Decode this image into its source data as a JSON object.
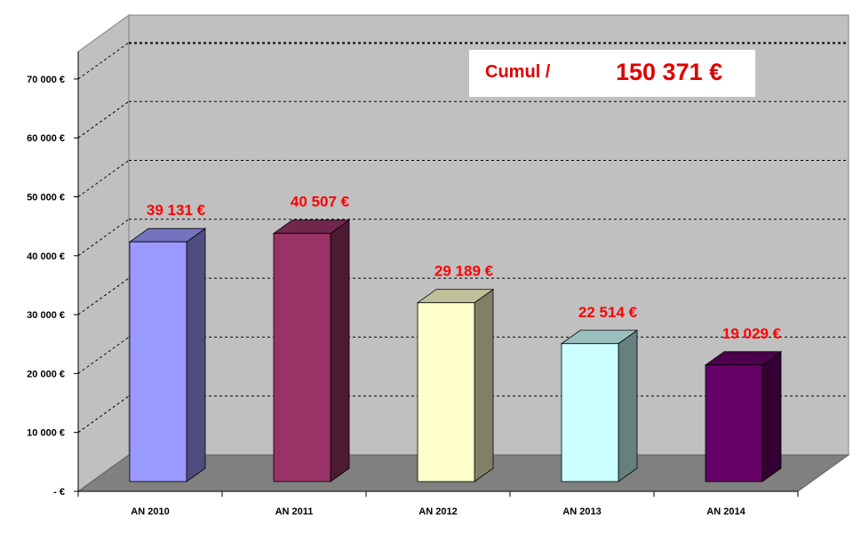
{
  "chart_data": {
    "type": "bar",
    "categories": [
      "AN 2010",
      "AN 2011",
      "AN 2012",
      "AN 2013",
      "AN 2014"
    ],
    "values": [
      39131,
      40507,
      29189,
      22514,
      19029
    ],
    "value_labels": [
      "39 131 €",
      "40 507 €",
      "29 189 €",
      "22 514 €",
      "19 029 €"
    ],
    "y_ticks": [
      0,
      10000,
      20000,
      30000,
      40000,
      50000,
      60000,
      70000
    ],
    "y_tick_labels": [
      "-   €",
      "10 000 €",
      "20 000 €",
      "30 000 €",
      "40 000 €",
      "50 000 €",
      "60 000 €",
      "70 000 €"
    ],
    "ylim": [
      0,
      75000
    ],
    "grid": true,
    "three_d": true,
    "bar_colors": [
      "#9999ff",
      "#993366",
      "#ffffcc",
      "#ccffff",
      "#660066"
    ],
    "wall_color": "#c0c0c0",
    "floor_color": "#808080",
    "label_color": "#ff0000"
  },
  "annotation": {
    "label": "Cumul /",
    "value": "150 371 €"
  }
}
